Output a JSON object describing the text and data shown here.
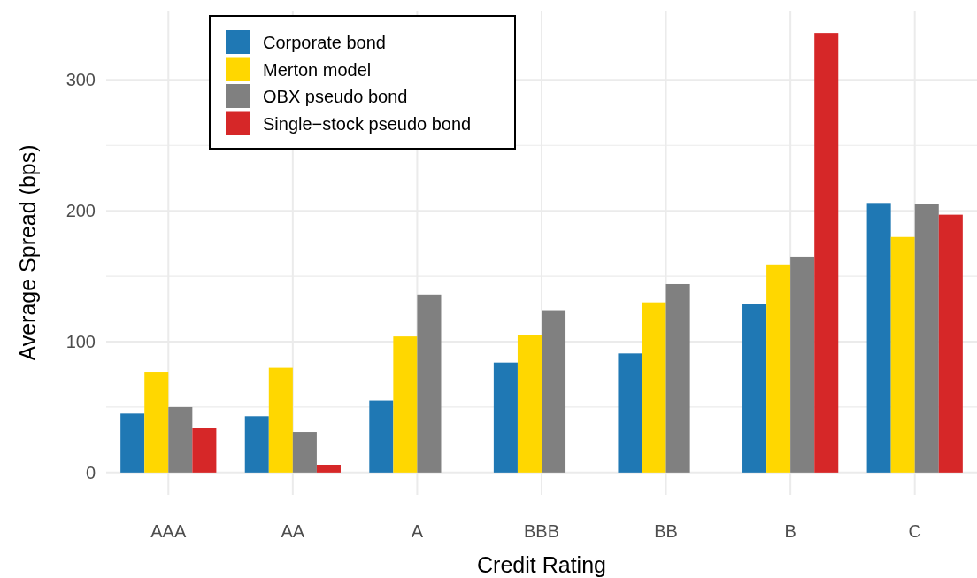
{
  "chart_data": {
    "type": "bar",
    "xlabel": "Credit Rating",
    "ylabel": "Average Spread (bps)",
    "categories": [
      "AAA",
      "AA",
      "A",
      "BBB",
      "BB",
      "B",
      "C"
    ],
    "series": [
      {
        "name": "Corporate bond",
        "color": "#1f78b4",
        "values": [
          45,
          43,
          55,
          84,
          91,
          129,
          206
        ]
      },
      {
        "name": "Merton model",
        "color": "#ffd700",
        "values": [
          77,
          80,
          104,
          105,
          130,
          159,
          180
        ]
      },
      {
        "name": "OBX pseudo bond",
        "color": "#808080",
        "values": [
          50,
          31,
          136,
          124,
          144,
          165,
          205
        ]
      },
      {
        "name": "Single−stock pseudo bond",
        "color": "#d62728",
        "values": [
          34,
          6,
          null,
          null,
          null,
          336,
          197
        ]
      }
    ],
    "ylim": [
      -17,
      353
    ],
    "yticks": [
      0,
      {
        "value": 50,
        "label": null
      },
      100,
      {
        "value": 150,
        "label": null
      },
      200,
      {
        "value": 250,
        "label": null
      },
      300
    ],
    "grid": true,
    "legend": "top left"
  }
}
